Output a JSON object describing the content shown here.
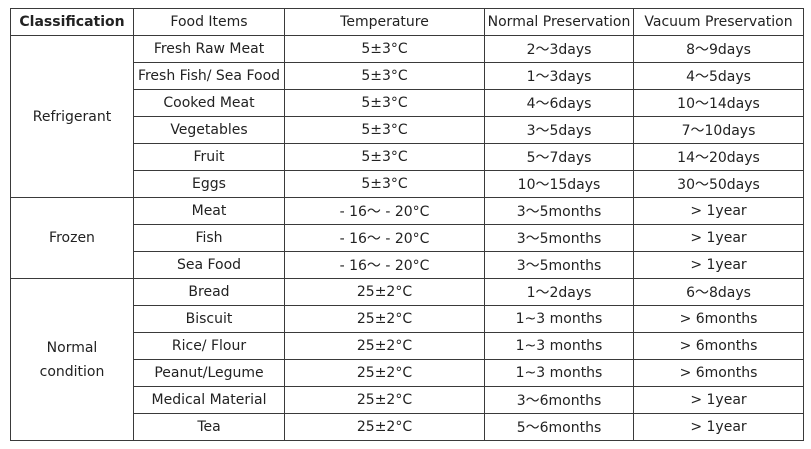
{
  "headers": {
    "classification": "Classification",
    "food_items": "Food Items",
    "temperature": "Temperature",
    "normal": "Normal Preservation",
    "vacuum": "Vacuum Preservation"
  },
  "groups": [
    {
      "name": "Refrigerant",
      "rows": [
        {
          "item": "Fresh Raw Meat",
          "temp": "5±3°C",
          "normal": "2～3days",
          "vacuum": "8～9days"
        },
        {
          "item": "Fresh Fish/ Sea Food",
          "temp": "5±3°C",
          "normal": "1～3days",
          "vacuum": "4～5days"
        },
        {
          "item": "Cooked Meat",
          "temp": "5±3°C",
          "normal": "4～6days",
          "vacuum": "10～14days"
        },
        {
          "item": "Vegetables",
          "temp": "5±3°C",
          "normal": "3～5days",
          "vacuum": "7～10days"
        },
        {
          "item": "Fruit",
          "temp": "5±3°C",
          "normal": "5～7days",
          "vacuum": "14～20days"
        },
        {
          "item": "Eggs",
          "temp": "5±3°C",
          "normal": "10～15days",
          "vacuum": "30～50days"
        }
      ]
    },
    {
      "name": "Frozen",
      "rows": [
        {
          "item": "Meat",
          "temp": "- 16～ - 20°C",
          "normal": "3～5months",
          "vacuum": "> 1year"
        },
        {
          "item": "Fish",
          "temp": "- 16～ - 20°C",
          "normal": "3～5months",
          "vacuum": "> 1year"
        },
        {
          "item": "Sea Food",
          "temp": "- 16～ - 20°C",
          "normal": "3～5months",
          "vacuum": "> 1year"
        }
      ]
    },
    {
      "name": "Normal condition",
      "rows": [
        {
          "item": "Bread",
          "temp": "25±2°C",
          "normal": "1～2days",
          "vacuum": "6～8days"
        },
        {
          "item": "Biscuit",
          "temp": "25±2°C",
          "normal": "1~3 months",
          "vacuum": "> 6months"
        },
        {
          "item": "Rice/ Flour",
          "temp": "25±2°C",
          "normal": "1~3 months",
          "vacuum": "> 6months"
        },
        {
          "item": "Peanut/Legume",
          "temp": "25±2°C",
          "normal": "1~3 months",
          "vacuum": "> 6months"
        },
        {
          "item": "Medical Material",
          "temp": "25±2°C",
          "normal": "3～6months",
          "vacuum": "> 1year"
        },
        {
          "item": "Tea",
          "temp": "25±2°C",
          "normal": "5～6months",
          "vacuum": "> 1year"
        }
      ]
    }
  ]
}
